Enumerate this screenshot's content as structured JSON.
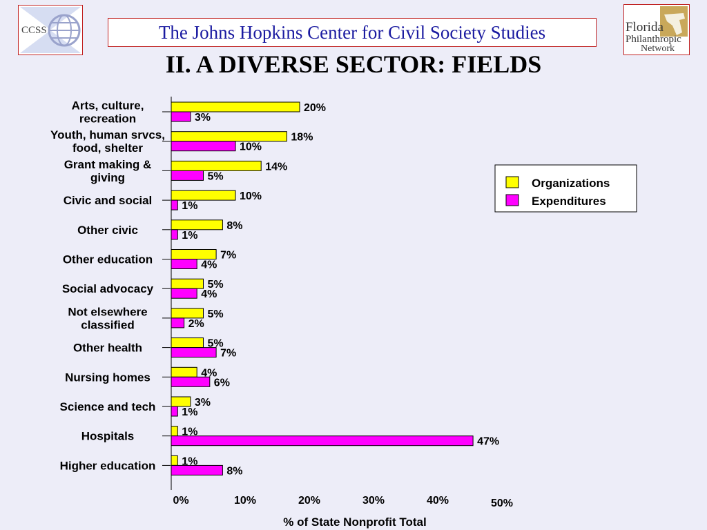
{
  "header": {
    "center_name": "The Johns Hopkins Center for Civil Society Studies",
    "title": "II. A DIVERSE SECTOR: FIELDS",
    "logo_left_text": "CCSS",
    "logo_right_lines": [
      "Florida",
      "Philanthropic",
      "Network"
    ]
  },
  "colors": {
    "organizations": "#ffff00",
    "expenditures": "#ff00ff",
    "header_text": "#1a1aa0",
    "border_accent": "#c02020"
  },
  "chart_data": {
    "type": "bar",
    "orientation": "horizontal",
    "categories": [
      [
        "Arts, culture,",
        "recreation"
      ],
      [
        "Youth, human srvcs,",
        "food, shelter"
      ],
      [
        "Grant making &",
        "giving"
      ],
      [
        "Civic and social"
      ],
      [
        "Other civic"
      ],
      [
        "Other education"
      ],
      [
        "Social advocacy"
      ],
      [
        "Not elsewhere",
        "classified"
      ],
      [
        "Other health"
      ],
      [
        "Nursing homes"
      ],
      [
        "Science and tech"
      ],
      [
        "Hospitals"
      ],
      [
        "Higher education"
      ]
    ],
    "series": [
      {
        "name": "Organizations",
        "values": [
          20,
          18,
          14,
          10,
          8,
          7,
          5,
          5,
          5,
          4,
          3,
          1,
          1
        ],
        "labels": [
          "20%",
          "18%",
          "14%",
          "10%",
          "8%",
          "7%",
          "5%",
          "5%",
          "5%",
          "4%",
          "3%",
          "1%",
          "1%"
        ]
      },
      {
        "name": "Expenditures",
        "values": [
          3,
          10,
          5,
          1,
          1,
          4,
          4,
          2,
          7,
          6,
          1,
          47,
          8
        ],
        "labels": [
          "3%",
          "10%",
          "5%",
          "1%",
          "1%",
          "4%",
          "4%",
          "2%",
          "7%",
          "6%",
          "1%",
          "47%",
          "8%"
        ]
      }
    ],
    "xlabel": "% of State Nonprofit Total",
    "xlim": [
      0,
      50
    ],
    "xticks": [
      0,
      10,
      20,
      30,
      40,
      50
    ],
    "xtick_labels": [
      "0%",
      "10%",
      "20%",
      "30%",
      "40%",
      "50%"
    ],
    "legend": {
      "position": "right",
      "entries": [
        "Organizations",
        "Expenditures"
      ]
    },
    "grid": false
  }
}
